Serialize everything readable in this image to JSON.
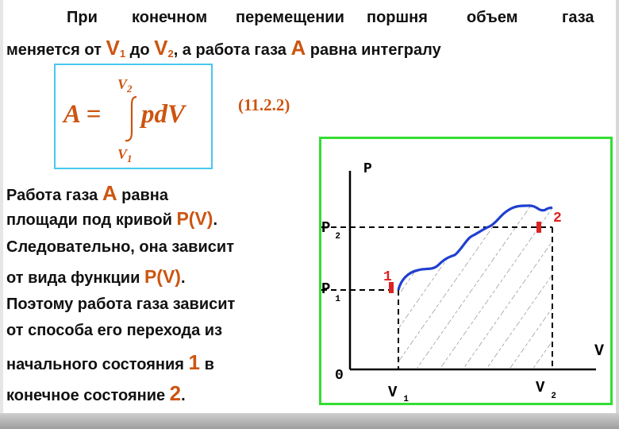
{
  "intro": {
    "line1_words": [
      "При",
      "конечном",
      "перемещении",
      "поршня",
      "объем",
      "газа"
    ],
    "line2_a": "меняется от",
    "v1_label": "V",
    "v1_sub": "1",
    "line2_b": "до",
    "v2_label": "V",
    "v2_sub": "2",
    "line2_c": ", а работа газа",
    "a_label": "A",
    "line2_d": "равна интегралу"
  },
  "formula": {
    "lhs": "A =",
    "integrand": "pdV",
    "upper_limit": "V",
    "upper_sub": "2",
    "lower_limit": "V",
    "lower_sub": "1",
    "number": "(11.2.2)"
  },
  "body": {
    "l1_text": "Работа газа",
    "l1_accent": "A",
    "l1_tail": "равна",
    "l2_text": "площади под кривой",
    "l2_accent": "P(V)",
    "l2_tail": ".",
    "l3_text": "Следовательно, она зависит",
    "l4_text": "от вида функции",
    "l4_accent": "P(V)",
    "l4_tail": ".",
    "l5_text": "Поэтому работа газа зависит",
    "l6_text": "от способа его перехода из",
    "l7_text": "начального состояния",
    "l7_accent": "1",
    "l7_tail": "в",
    "l8_text": "конечное состояние",
    "l8_accent": "2",
    "l8_tail": "."
  },
  "graph": {
    "y_axis_label": "P",
    "x_axis_label": "V",
    "origin_label": "0",
    "p2_label": "P",
    "p2_sub": "2",
    "p1_label": "P",
    "p1_sub": "1",
    "v1_label": "V",
    "v1_sub": "1",
    "v2_label": "V",
    "v2_sub": "2",
    "state1_label": "1",
    "state2_label": "2",
    "curve_color": "#1f3fd0",
    "marker_color": "#dd2222",
    "border_color": "#33dd33"
  },
  "colors": {
    "accent": "#cc5511",
    "formula_border": "#46c8f0"
  }
}
